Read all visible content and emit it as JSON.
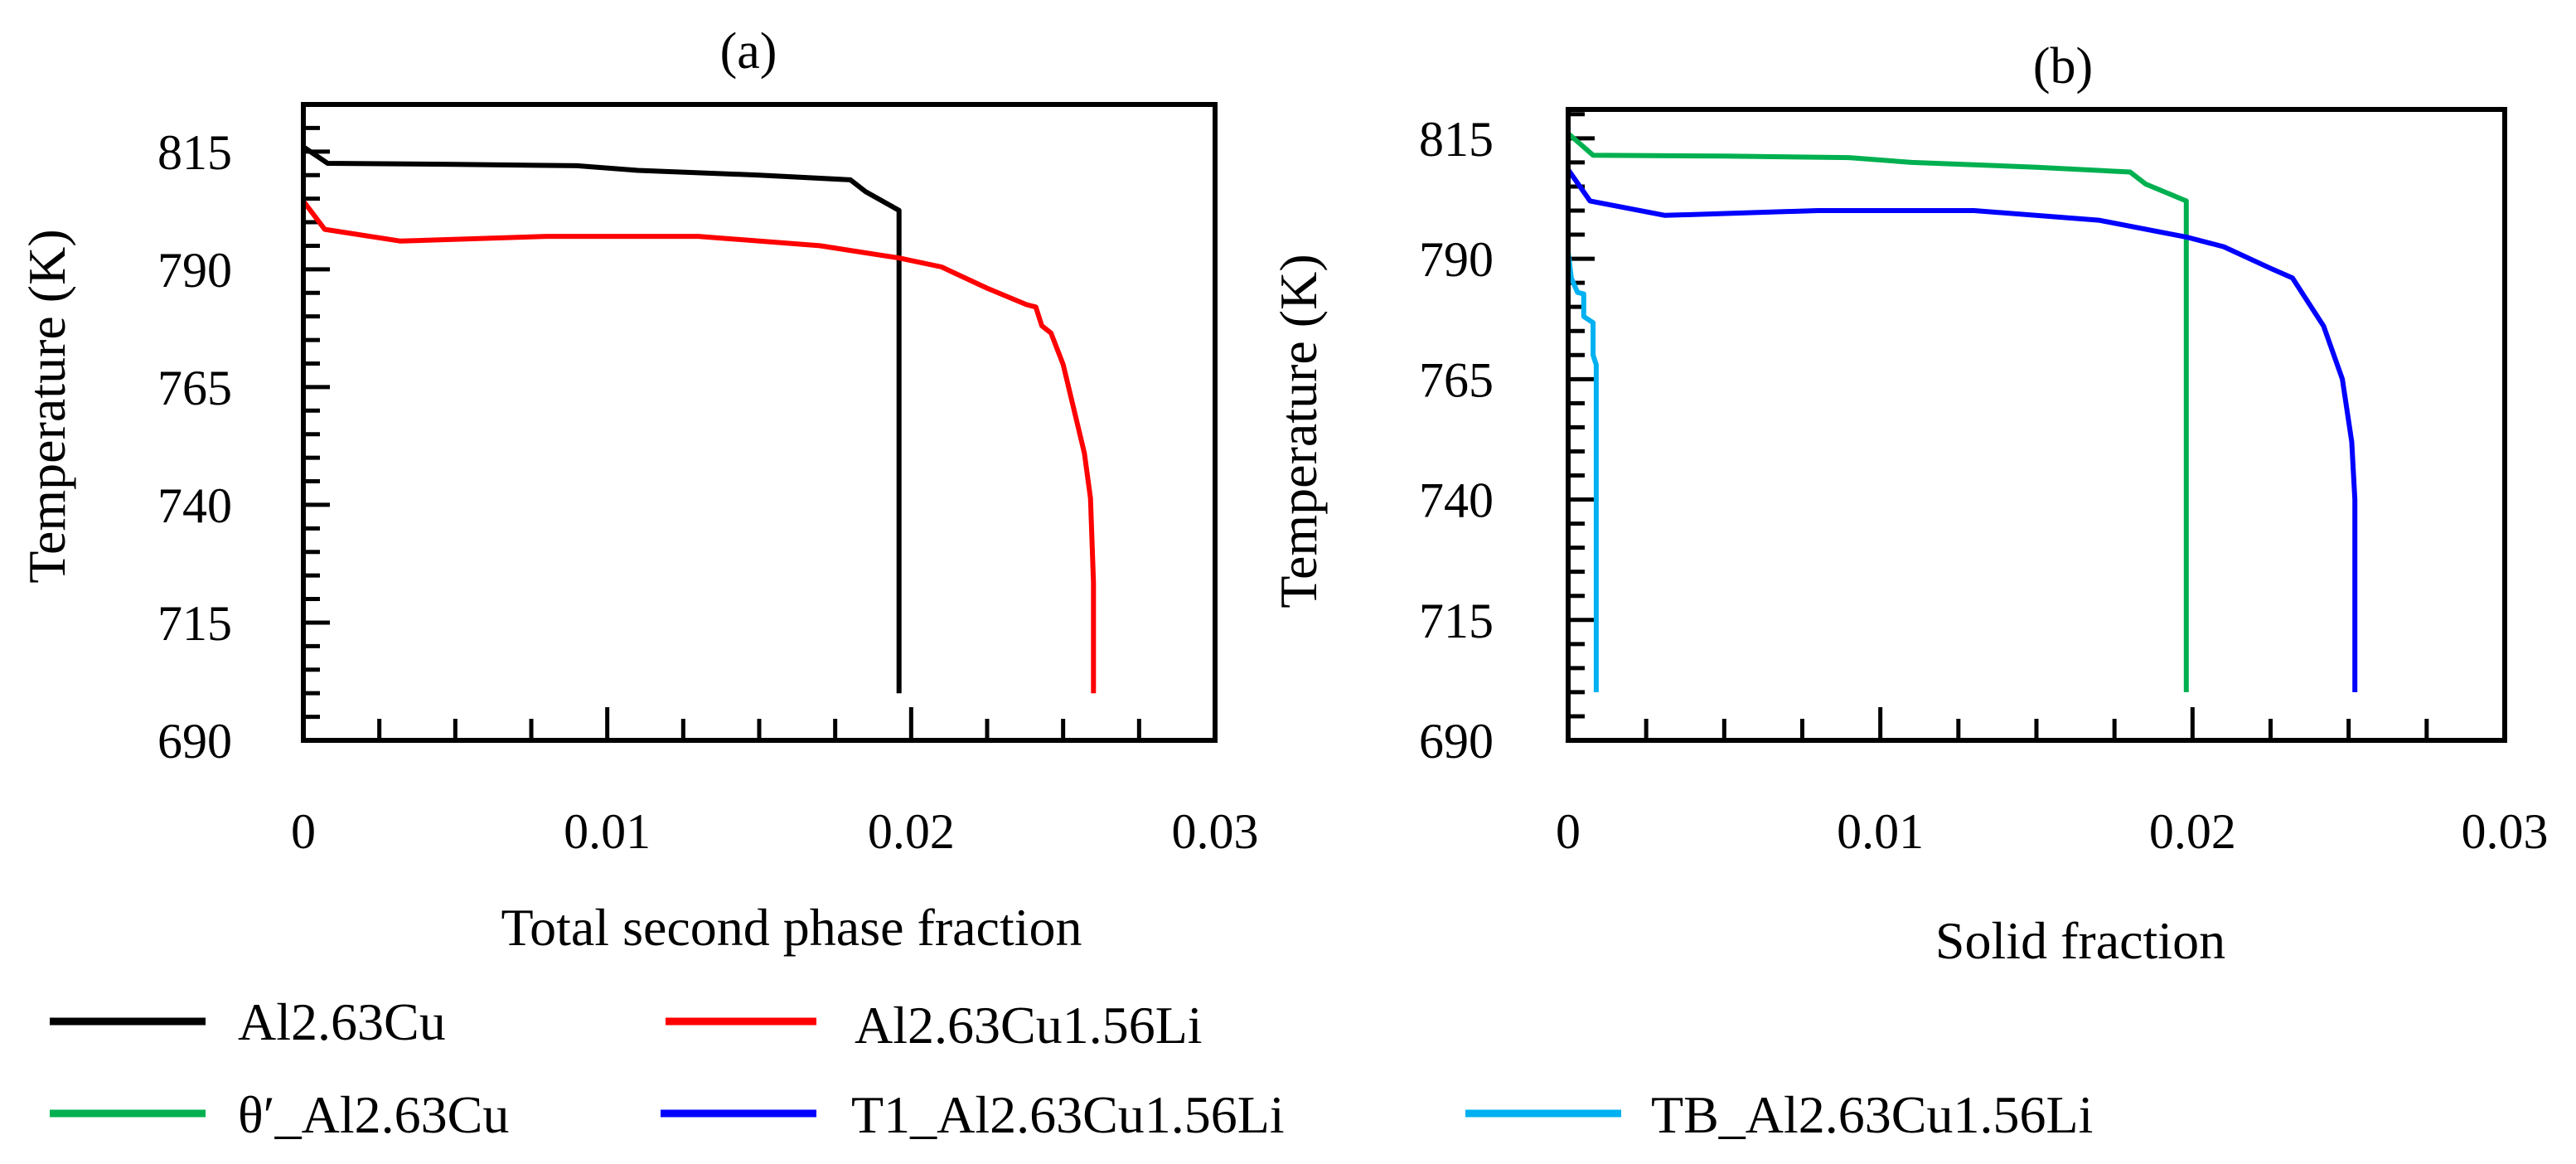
{
  "chart_data": [
    {
      "type": "line",
      "panel": "(a)",
      "title": "(a)",
      "xlabel": "Total second phase fraction",
      "ylabel": "Temperature (K)",
      "xlim": [
        0,
        0.03
      ],
      "ylim": [
        690,
        825
      ],
      "xticks": [
        "0",
        "0.01",
        "0.02",
        "0.03"
      ],
      "xtick_values": [
        0,
        0.01,
        0.02,
        0.03
      ],
      "yticks": [
        "690",
        "715",
        "740",
        "765",
        "790",
        "815"
      ],
      "ytick_values": [
        690,
        715,
        740,
        765,
        790,
        815
      ],
      "grid": false,
      "series": [
        {
          "name": "Al2.63Cu",
          "color": "#000000",
          "points": [
            [
              0,
              816
            ],
            [
              0.0008,
              812.5
            ],
            [
              0.005,
              812.3
            ],
            [
              0.009,
              812
            ],
            [
              0.011,
              811
            ],
            [
              0.015,
              810
            ],
            [
              0.018,
              809
            ],
            [
              0.0185,
              806.5
            ],
            [
              0.0196,
              802.5
            ],
            [
              0.0196,
              700
            ]
          ]
        },
        {
          "name": "Al2.63Cu1.56Li",
          "color": "#ff0000",
          "points": [
            [
              0,
              804.5
            ],
            [
              0.0007,
              798.5
            ],
            [
              0.0032,
              796
            ],
            [
              0.008,
              797
            ],
            [
              0.013,
              797
            ],
            [
              0.017,
              795
            ],
            [
              0.0196,
              792.4
            ],
            [
              0.021,
              790.5
            ],
            [
              0.0225,
              786
            ],
            [
              0.0238,
              782.5
            ],
            [
              0.0241,
              782
            ],
            [
              0.0243,
              778
            ],
            [
              0.0246,
              776.5
            ],
            [
              0.025,
              769.8
            ],
            [
              0.0257,
              751
            ],
            [
              0.0259,
              741.4
            ],
            [
              0.026,
              723.5
            ],
            [
              0.026,
              700
            ]
          ]
        }
      ]
    },
    {
      "type": "line",
      "panel": "(b)",
      "title": "(b)",
      "xlabel": "Solid fraction",
      "ylabel": "Temperature (K)",
      "xlim": [
        0,
        0.03
      ],
      "ylim": [
        690,
        821
      ],
      "xticks": [
        "0",
        "0.01",
        "0.02",
        "0.03"
      ],
      "xtick_values": [
        0,
        0.01,
        0.02,
        0.03
      ],
      "yticks": [
        "690",
        "715",
        "740",
        "765",
        "790",
        "815"
      ],
      "ytick_values": [
        690,
        715,
        740,
        765,
        790,
        815
      ],
      "grid": false,
      "series": [
        {
          "name": "θ′_Al2.63Cu",
          "color": "#00b050",
          "points": [
            [
              0,
              816
            ],
            [
              0.0008,
              811.5
            ],
            [
              0.005,
              811.3
            ],
            [
              0.009,
              811
            ],
            [
              0.011,
              810
            ],
            [
              0.015,
              809
            ],
            [
              0.018,
              808
            ],
            [
              0.0185,
              805.5
            ],
            [
              0.0198,
              802
            ],
            [
              0.0198,
              700
            ]
          ]
        },
        {
          "name": "T1_Al2.63Cu1.56Li",
          "color": "#0000ff",
          "points": [
            [
              0,
              808.5
            ],
            [
              0.0007,
              802
            ],
            [
              0.0031,
              799
            ],
            [
              0.008,
              800
            ],
            [
              0.013,
              800
            ],
            [
              0.017,
              798
            ],
            [
              0.0198,
              794.5
            ],
            [
              0.021,
              792.5
            ],
            [
              0.0225,
              788
            ],
            [
              0.0232,
              786
            ],
            [
              0.0235,
              783
            ],
            [
              0.0242,
              776
            ],
            [
              0.0248,
              765
            ],
            [
              0.0251,
              752
            ],
            [
              0.0252,
              740
            ],
            [
              0.0252,
              720
            ],
            [
              0.0252,
              700
            ]
          ]
        },
        {
          "name": "TB_Al2.63Cu1.56Li",
          "color": "#00b0f0",
          "points": [
            [
              0,
              791.4
            ],
            [
              0.0001,
              786
            ],
            [
              0.0003,
              783
            ],
            [
              0.0005,
              782.7
            ],
            [
              0.0005,
              778
            ],
            [
              0.0008,
              776.7
            ],
            [
              0.0008,
              770
            ],
            [
              0.0009,
              768
            ],
            [
              0.0009,
              700
            ]
          ]
        }
      ]
    }
  ],
  "legend": {
    "placement": "bottom",
    "items": [
      {
        "label": "Al2.63Cu",
        "color": "#000000"
      },
      {
        "label": "Al2.63Cu1.56Li",
        "color": "#ff0000"
      },
      {
        "label": "θ′_Al2.63Cu",
        "color": "#00b050"
      },
      {
        "label": "T1_Al2.63Cu1.56Li",
        "color": "#0000ff"
      },
      {
        "label": "TB_Al2.63Cu1.56Li",
        "color": "#00b0f0"
      }
    ]
  }
}
